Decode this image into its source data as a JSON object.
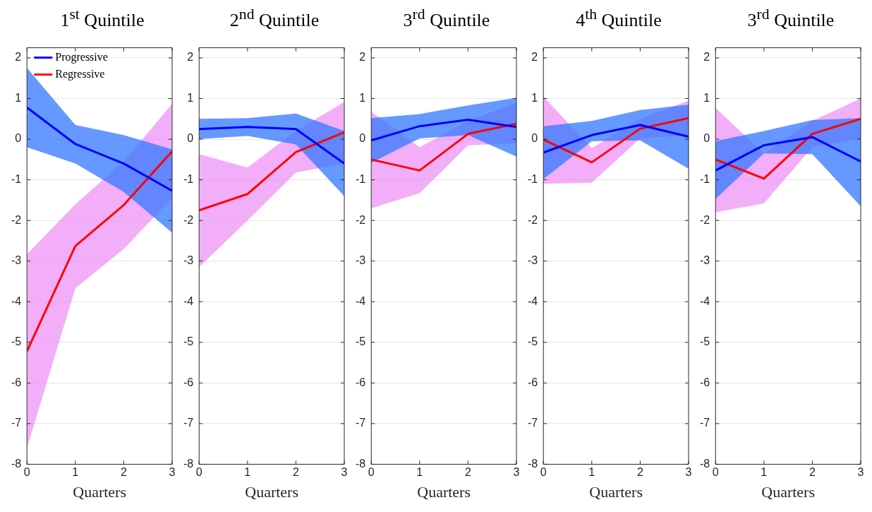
{
  "chart_data": [
    {
      "type": "line",
      "title": "1$^{st}$ Quintile",
      "xlabel": "Quarters",
      "x": [
        0,
        1,
        2,
        3
      ],
      "xlim": [
        0,
        3
      ],
      "xticks": [
        0,
        1,
        2,
        3
      ],
      "ylim": [
        -8,
        2.25
      ],
      "yticks": [
        -8,
        -7,
        -6,
        -5,
        -4,
        -3,
        -2,
        -1,
        0,
        1,
        2
      ],
      "grid": "y",
      "legend": "top left",
      "series": [
        {
          "name": "Progressive",
          "color": "#0000ff",
          "values": [
            0.78,
            -0.12,
            -0.6,
            -1.27
          ],
          "lower": [
            -0.2,
            -0.6,
            -1.3,
            -2.3
          ],
          "upper": [
            1.75,
            0.35,
            0.1,
            -0.25
          ]
        },
        {
          "name": "Regressive",
          "color": "#ff0000",
          "values": [
            -5.22,
            -2.63,
            -1.62,
            -0.3
          ],
          "lower": [
            -7.6,
            -3.67,
            -2.7,
            -1.45
          ],
          "upper": [
            -2.83,
            -1.6,
            -0.55,
            0.87
          ]
        }
      ]
    },
    {
      "type": "line",
      "title": "2$^{nd}$ Quintile",
      "xlabel": "Quarters",
      "x": [
        0,
        1,
        2,
        3
      ],
      "xlim": [
        0,
        3
      ],
      "xticks": [
        0,
        1,
        2,
        3
      ],
      "ylim": [
        -8,
        2.25
      ],
      "yticks": [
        -8,
        -7,
        -6,
        -5,
        -4,
        -3,
        -2,
        -1,
        0,
        1,
        2
      ],
      "grid": "y",
      "series": [
        {
          "color": "#0000ff",
          "values": [
            0.25,
            0.3,
            0.25,
            -0.6
          ],
          "lower": [
            0.0,
            0.08,
            -0.13,
            -1.4
          ],
          "upper": [
            0.5,
            0.52,
            0.63,
            0.2
          ]
        },
        {
          "color": "#ff0000",
          "values": [
            -1.75,
            -1.35,
            -0.32,
            0.17
          ],
          "lower": [
            -3.15,
            -2.0,
            -0.82,
            -0.6
          ],
          "upper": [
            -0.37,
            -0.7,
            0.2,
            0.92
          ]
        }
      ]
    },
    {
      "type": "line",
      "title": "3$^{rd}$ Quintile",
      "xlabel": "Quarters",
      "x": [
        0,
        1,
        2,
        3
      ],
      "xlim": [
        0,
        3
      ],
      "xticks": [
        0,
        1,
        2,
        3
      ],
      "ylim": [
        -8,
        2.25
      ],
      "yticks": [
        -8,
        -7,
        -6,
        -5,
        -4,
        -3,
        -2,
        -1,
        0,
        1,
        2
      ],
      "grid": "y",
      "series": [
        {
          "color": "#0000ff",
          "values": [
            -0.03,
            0.32,
            0.48,
            0.3
          ],
          "lower": [
            -0.58,
            0.02,
            0.1,
            -0.43
          ],
          "upper": [
            0.52,
            0.62,
            0.83,
            1.02
          ]
        },
        {
          "color": "#ff0000",
          "values": [
            -0.5,
            -0.77,
            0.13,
            0.38
          ],
          "lower": [
            -1.7,
            -1.33,
            -0.15,
            -0.1
          ],
          "upper": [
            0.68,
            -0.2,
            0.45,
            0.9
          ]
        }
      ]
    },
    {
      "type": "line",
      "title": "4$^{th}$ Quintile",
      "xlabel": "Quarters",
      "x": [
        0,
        1,
        2,
        3
      ],
      "xlim": [
        0,
        3
      ],
      "xticks": [
        0,
        1,
        2,
        3
      ],
      "ylim": [
        -8,
        2.25
      ],
      "yticks": [
        -8,
        -7,
        -6,
        -5,
        -4,
        -3,
        -2,
        -1,
        0,
        1,
        2
      ],
      "grid": "y",
      "series": [
        {
          "color": "#0000ff",
          "values": [
            -0.33,
            0.1,
            0.35,
            0.06
          ],
          "lower": [
            -0.98,
            -0.05,
            -0.03,
            -0.73
          ],
          "upper": [
            0.32,
            0.45,
            0.72,
            0.85
          ]
        },
        {
          "color": "#ff0000",
          "values": [
            -0.01,
            -0.57,
            0.26,
            0.52
          ],
          "lower": [
            -1.1,
            -1.07,
            0.02,
            0.1
          ],
          "upper": [
            1.05,
            -0.22,
            0.5,
            0.95
          ]
        }
      ]
    },
    {
      "type": "line",
      "title": "3$^{rd}$ Quintile",
      "xlabel": "Quarters",
      "x": [
        0,
        1,
        2,
        3
      ],
      "xlim": [
        0,
        3
      ],
      "xticks": [
        0,
        1,
        2,
        3
      ],
      "ylim": [
        -8,
        2.25
      ],
      "yticks": [
        -8,
        -7,
        -6,
        -5,
        -4,
        -3,
        -2,
        -1,
        0,
        1,
        2
      ],
      "grid": "y",
      "series": [
        {
          "color": "#0000ff",
          "values": [
            -0.77,
            -0.15,
            0.05,
            -0.55
          ],
          "lower": [
            -1.47,
            -0.35,
            -0.37,
            -1.65
          ],
          "upper": [
            -0.05,
            0.2,
            0.47,
            0.52
          ]
        },
        {
          "color": "#ff0000",
          "values": [
            -0.5,
            -0.97,
            0.13,
            0.5
          ],
          "lower": [
            -1.8,
            -1.58,
            -0.2,
            0.02
          ],
          "upper": [
            0.77,
            -0.35,
            0.45,
            1.0
          ]
        }
      ]
    }
  ]
}
